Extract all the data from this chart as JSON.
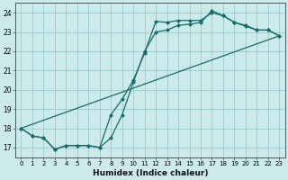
{
  "xlabel": "Humidex (Indice chaleur)",
  "bg_color": "#cceaea",
  "grid_color": "#99cccc",
  "line_color": "#1a6b6b",
  "xlim": [
    -0.5,
    23.5
  ],
  "ylim": [
    16.5,
    24.5
  ],
  "yticks": [
    17,
    18,
    19,
    20,
    21,
    22,
    23,
    24
  ],
  "xticks": [
    0,
    1,
    2,
    3,
    4,
    5,
    6,
    7,
    8,
    9,
    10,
    11,
    12,
    13,
    14,
    15,
    16,
    17,
    18,
    19,
    20,
    21,
    22,
    23
  ],
  "line1_x": [
    0,
    1,
    2,
    3,
    4,
    5,
    6,
    7,
    8,
    9,
    10,
    11,
    12,
    13,
    14,
    15,
    16,
    17,
    18,
    19,
    20,
    21,
    22,
    23
  ],
  "line1_y": [
    18.0,
    17.6,
    17.5,
    16.9,
    17.1,
    17.1,
    17.1,
    17.0,
    18.7,
    19.5,
    20.5,
    21.9,
    23.55,
    23.5,
    23.6,
    23.6,
    23.6,
    24.0,
    23.85,
    23.5,
    23.3,
    23.1,
    23.1,
    22.8
  ],
  "line2_x": [
    0,
    1,
    2,
    3,
    4,
    5,
    6,
    7,
    8,
    9,
    10,
    11,
    12,
    13,
    14,
    15,
    16,
    17,
    18,
    19,
    20,
    21,
    22,
    23
  ],
  "line2_y": [
    18.0,
    17.6,
    17.5,
    16.9,
    17.1,
    17.1,
    17.1,
    17.0,
    17.5,
    18.7,
    20.4,
    22.0,
    23.0,
    23.1,
    23.35,
    23.4,
    23.5,
    24.1,
    23.85,
    23.5,
    23.35,
    23.1,
    23.1,
    22.8
  ],
  "line3_x": [
    0,
    23
  ],
  "line3_y": [
    18.0,
    22.8
  ],
  "marker": "D",
  "markersize": 2.0,
  "linewidth": 0.9
}
